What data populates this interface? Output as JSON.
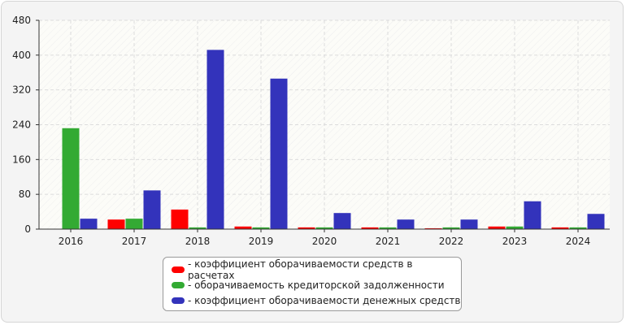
{
  "chart_data": {
    "type": "bar",
    "categories": [
      "2016",
      "2017",
      "2018",
      "2019",
      "2020",
      "2021",
      "2022",
      "2023",
      "2024"
    ],
    "series": [
      {
        "name": "- коэффициент оборачиваемости средств в расчетах",
        "color": "#ff0000",
        "values": [
          0,
          22,
          45,
          6,
          4,
          4,
          2,
          6,
          4
        ]
      },
      {
        "name": "- оборачиваемость кредиторской задолженности",
        "color": "#33aa33",
        "values": [
          232,
          24,
          4,
          4,
          4,
          4,
          4,
          6,
          4
        ]
      },
      {
        "name": "- коэффициент оборачиваемости денежных средств",
        "color": "#3333bb",
        "values": [
          24,
          89,
          412,
          346,
          37,
          22,
          22,
          64,
          35
        ]
      }
    ],
    "yticks": [
      "0",
      "80",
      "160",
      "240",
      "320",
      "400",
      "480"
    ],
    "ylim": [
      0,
      480
    ],
    "grid": true,
    "legend_position": "bottom"
  }
}
